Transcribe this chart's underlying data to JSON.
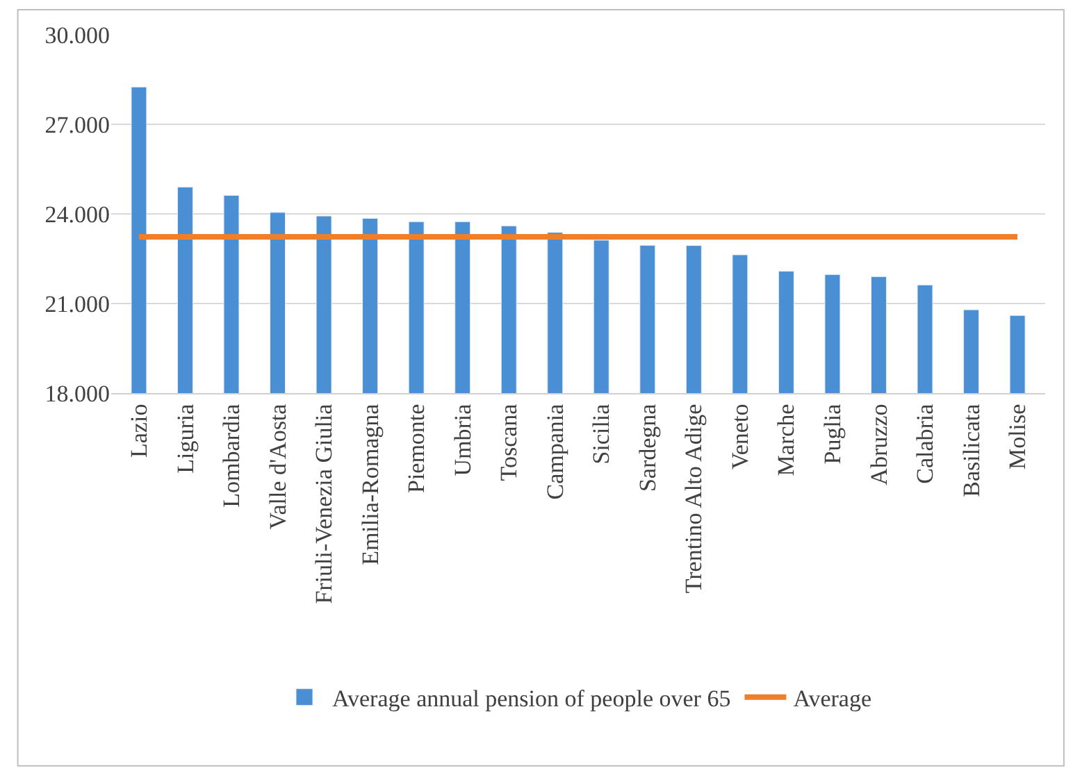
{
  "chart_data": {
    "type": "bar",
    "categories": [
      "Lazio",
      "Liguria",
      "Lombardia",
      "Valle d'Aosta",
      "Friuli-Venezia Giulia",
      "Emilia-Romagna",
      "Piemonte",
      "Umbria",
      "Toscana",
      "Campania",
      "Sicilia",
      "Sardegna",
      "Trentino Alto Adige",
      "Veneto",
      "Marche",
      "Puglia",
      "Abruzzo",
      "Calabria",
      "Basilicata",
      "Molise"
    ],
    "series": [
      {
        "name": "Average annual pension of people over 65",
        "color": "#4a8fd4",
        "values": [
          28250,
          24900,
          24620,
          24050,
          23930,
          23850,
          23740,
          23740,
          23600,
          23380,
          23120,
          22950,
          22940,
          22630,
          22080,
          21970,
          21900,
          21620,
          20790,
          20600
        ]
      },
      {
        "name": "Average",
        "type": "line",
        "color": "#f07f2a",
        "values": [
          23230,
          23230,
          23230,
          23230,
          23230,
          23230,
          23230,
          23230,
          23230,
          23230,
          23230,
          23230,
          23230,
          23230,
          23230,
          23230,
          23230,
          23230,
          23230,
          23230
        ]
      }
    ],
    "ylim": [
      18000,
      30000
    ],
    "yticks": [
      {
        "value": 18000,
        "label": "18.000"
      },
      {
        "value": 21000,
        "label": "21.000"
      },
      {
        "value": 24000,
        "label": "24.000"
      },
      {
        "value": 27000,
        "label": "27.000"
      },
      {
        "value": 30000,
        "label": "30.000"
      }
    ],
    "grid": "y",
    "legend": "bottom",
    "marker": "none",
    "line_style": "solid"
  }
}
